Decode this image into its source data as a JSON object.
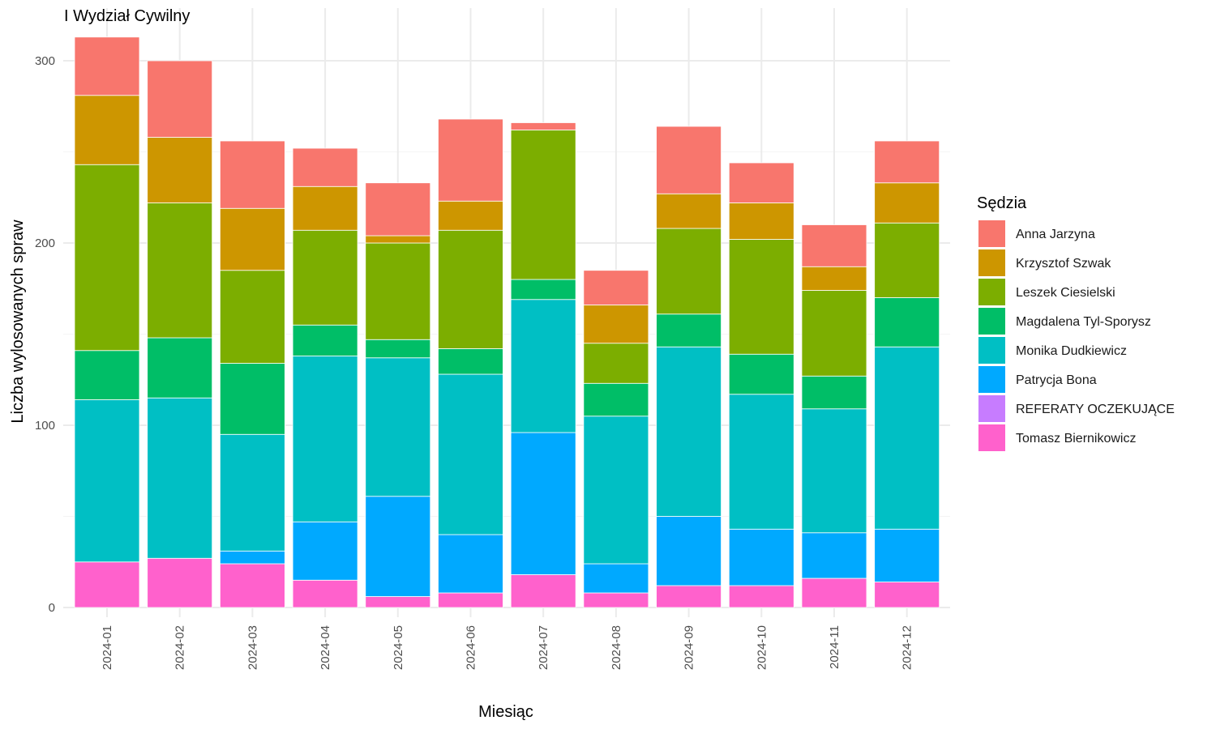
{
  "chart_data": {
    "type": "bar",
    "stacked": true,
    "title": "I Wydział Cywilny",
    "xlabel": "Miesiąc",
    "ylabel": "Liczba wylosowanych spraw",
    "ylim": [
      0,
      315
    ],
    "yticks": [
      0,
      100,
      200,
      300
    ],
    "grid": true,
    "legend_title": "Sędzia",
    "legend_position": "right",
    "categories": [
      "2024-01",
      "2024-02",
      "2024-03",
      "2024-04",
      "2024-05",
      "2024-06",
      "2024-07",
      "2024-08",
      "2024-09",
      "2024-10",
      "2024-11",
      "2024-12"
    ],
    "series": [
      {
        "name": "Anna Jarzyna",
        "color": "#F8766D",
        "values": [
          32,
          42,
          37,
          21,
          29,
          45,
          4,
          19,
          37,
          22,
          23,
          23
        ]
      },
      {
        "name": "Krzysztof Szwak",
        "color": "#CD9600",
        "values": [
          38,
          36,
          34,
          24,
          4,
          16,
          0,
          21,
          19,
          20,
          13,
          22
        ]
      },
      {
        "name": "Leszek Ciesielski",
        "color": "#7CAE00",
        "values": [
          102,
          74,
          51,
          52,
          53,
          65,
          82,
          22,
          47,
          63,
          47,
          41
        ]
      },
      {
        "name": "Magdalena Tyl-Sporysz",
        "color": "#00BE67",
        "values": [
          27,
          33,
          39,
          17,
          10,
          14,
          11,
          18,
          18,
          22,
          18,
          27
        ]
      },
      {
        "name": "Monika Dudkiewicz",
        "color": "#00BFC4",
        "values": [
          89,
          88,
          64,
          91,
          76,
          88,
          73,
          81,
          93,
          74,
          68,
          100
        ]
      },
      {
        "name": "Patrycja Bona",
        "color": "#00A9FF",
        "values": [
          0,
          0,
          7,
          32,
          55,
          32,
          78,
          16,
          38,
          31,
          25,
          29
        ]
      },
      {
        "name": "REFERATY OCZEKUJĄCE",
        "color": "#C77CFF",
        "values": [
          0,
          0,
          0,
          0,
          0,
          0,
          0,
          0,
          0,
          0,
          0,
          0
        ]
      },
      {
        "name": "Tomasz Biernikowicz",
        "color": "#FF61CC",
        "values": [
          25,
          27,
          24,
          15,
          6,
          8,
          18,
          8,
          12,
          12,
          16,
          14
        ]
      }
    ]
  }
}
